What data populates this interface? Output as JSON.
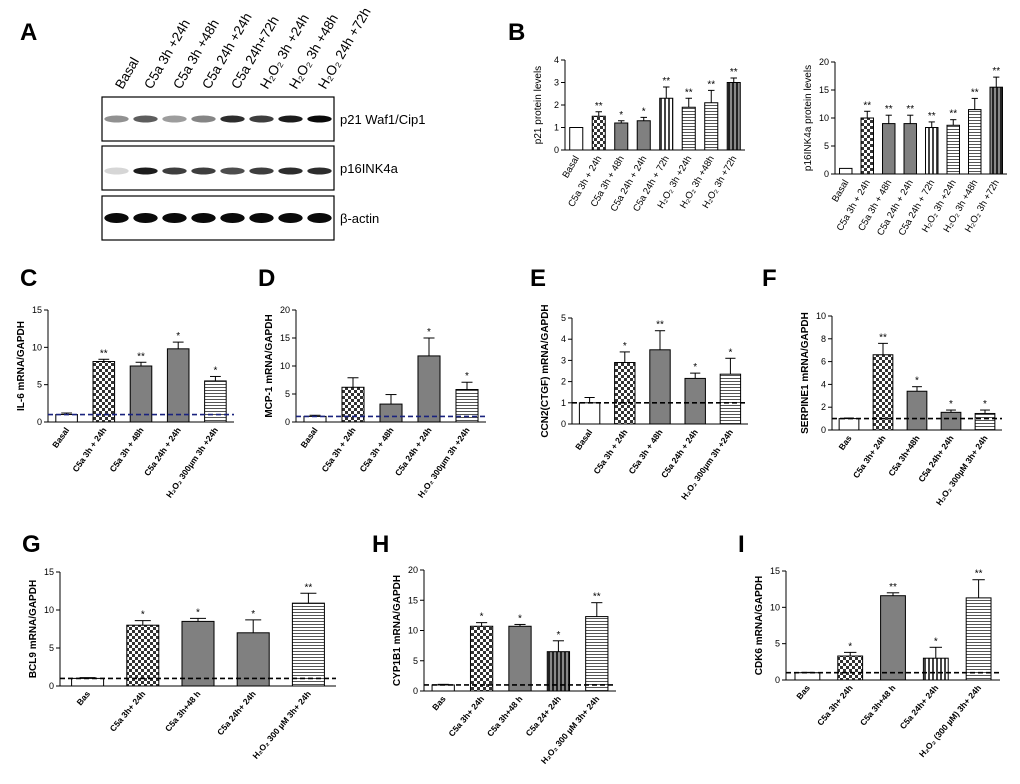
{
  "panels": {
    "A": "A",
    "B": "B",
    "C": "C",
    "D": "D",
    "E": "E",
    "F": "F",
    "G": "G",
    "H": "H",
    "I": "I"
  },
  "blot": {
    "lanes": [
      "Basal",
      "C5a 3h +24h",
      "C5a 3h +48h",
      "C5a 24h +24h",
      "C5a 24h+72h",
      "H₂O₂ 3h +24h",
      "H₂O₂ 3h +48h",
      "H₂O₂ 24h +72h"
    ],
    "rows": [
      {
        "label": "p21 Waf1/Cip1",
        "intensity": [
          0.55,
          0.75,
          0.5,
          0.6,
          0.9,
          0.85,
          0.95,
          1.0
        ]
      },
      {
        "label": "p16INK4a",
        "intensity": [
          0.2,
          0.95,
          0.85,
          0.85,
          0.8,
          0.85,
          0.9,
          0.9
        ]
      },
      {
        "label": "β-actin",
        "intensity": [
          1,
          1,
          1,
          1,
          1,
          1,
          1,
          1
        ]
      }
    ]
  },
  "chart_data": [
    {
      "id": "B1",
      "type": "bar",
      "panel": "B",
      "ylabel": "p21 protein levels",
      "ylim": [
        0,
        4
      ],
      "yticks": [
        0,
        1,
        2,
        3,
        4
      ],
      "categories": [
        "Basal",
        "C5a 3h + 24h",
        "C5a 3h + 48h",
        "C5a 24h + 24h",
        "C5a 24h + 72h",
        "H₂O₂ 3h +24h",
        "H₂O₂ 3h +48h",
        "H₂O₂ 3h +72h"
      ],
      "values": [
        1.0,
        1.5,
        1.2,
        1.3,
        2.3,
        1.9,
        2.1,
        3.0
      ],
      "errors": [
        0,
        0.2,
        0.1,
        0.15,
        0.5,
        0.4,
        0.55,
        0.2
      ],
      "sig": [
        "",
        "**",
        "*",
        "*",
        "**",
        "**",
        "**",
        "**"
      ],
      "patterns": [
        "white",
        "check",
        "gray",
        "gray",
        "vstripe",
        "hstripe",
        "hstripe",
        "dkvstripe"
      ]
    },
    {
      "id": "B2",
      "type": "bar",
      "panel": "B",
      "ylabel": "p16INK4a protein levels",
      "ylim": [
        0,
        20
      ],
      "yticks": [
        0,
        5,
        10,
        15,
        20
      ],
      "categories": [
        "Basal",
        "C5a 3h + 24h",
        "C5a 3h + 48h",
        "C5a 24h + 24h",
        "C5a 24h + 72h",
        "H₂O₂ 3h +24h",
        "H₂O₂ 3h +48h",
        "H₂O₂ 3h +72h"
      ],
      "values": [
        1.0,
        10.0,
        9.0,
        9.0,
        8.3,
        8.7,
        11.5,
        15.5
      ],
      "errors": [
        0,
        1.2,
        1.5,
        1.5,
        1.0,
        1.0,
        2.0,
        1.8
      ],
      "sig": [
        "",
        "**",
        "**",
        "**",
        "**",
        "**",
        "**",
        "**"
      ],
      "patterns": [
        "white",
        "check",
        "gray",
        "gray",
        "vstripe",
        "hstripe",
        "hstripe",
        "dkvstripe"
      ]
    },
    {
      "id": "C",
      "type": "bar",
      "panel": "C",
      "ylabel": "IL-6 mRNA/GAPDH",
      "ylim": [
        0,
        15
      ],
      "yticks": [
        0,
        5,
        10,
        15
      ],
      "categories": [
        "Basal",
        "C5a 3h + 24h",
        "C5a 3h + 48h",
        "C5a 24h + 24h",
        "H₂O₂ 300µm 3h +24h"
      ],
      "values": [
        1.0,
        8.1,
        7.5,
        9.8,
        5.5
      ],
      "errors": [
        0.2,
        0.3,
        0.5,
        0.9,
        0.6
      ],
      "sig": [
        "",
        "**",
        "**",
        "*",
        "*"
      ],
      "baseline": 1,
      "baseline_style": "dash-navy",
      "patterns": [
        "white",
        "check",
        "gray",
        "gray",
        "hstripe"
      ]
    },
    {
      "id": "D",
      "type": "bar",
      "panel": "D",
      "ylabel": "MCP-1 mRNA/GAPDH",
      "ylim": [
        0,
        20
      ],
      "yticks": [
        0,
        5,
        10,
        15,
        20
      ],
      "categories": [
        "Basal",
        "C5a 3h + 24h",
        "C5a 3h + 48h",
        "C5a 24h + 24h",
        "H₂O₂ 300µm 3h +24h"
      ],
      "values": [
        1.0,
        6.2,
        3.2,
        11.8,
        5.8
      ],
      "errors": [
        0.2,
        1.7,
        1.7,
        3.2,
        1.3
      ],
      "sig": [
        "",
        "",
        "",
        "*",
        "*"
      ],
      "baseline": 1,
      "baseline_style": "dash-navy",
      "patterns": [
        "white",
        "check",
        "gray",
        "gray",
        "hstripe"
      ]
    },
    {
      "id": "E",
      "type": "bar",
      "panel": "E",
      "ylabel": "CCN2(CTGF) mRNA/GAPDH",
      "ylim": [
        0,
        5
      ],
      "yticks": [
        0,
        1,
        2,
        3,
        4,
        5
      ],
      "categories": [
        "Basal",
        "C5a 3h + 24h",
        "C5a 3h + 48h",
        "C5a 24h + 24h",
        "H₂O₂ 300µm 3h +24h"
      ],
      "values": [
        1.0,
        2.9,
        3.5,
        2.15,
        2.35
      ],
      "errors": [
        0.25,
        0.5,
        0.9,
        0.25,
        0.75
      ],
      "sig": [
        "",
        "*",
        "**",
        "*",
        "*"
      ],
      "baseline": 1,
      "baseline_style": "dash-black",
      "patterns": [
        "white",
        "check",
        "gray",
        "gray",
        "hstripe"
      ]
    },
    {
      "id": "F",
      "type": "bar",
      "panel": "F",
      "ylabel": "SERPINE1 mRNA/GAPDH",
      "ylim": [
        0,
        10
      ],
      "yticks": [
        0,
        2,
        4,
        6,
        8,
        10
      ],
      "categories": [
        "Bas",
        "C5a 3h+ 24h",
        "C5a 3h+48h",
        "C5a 24h+ 24h",
        "H₂O₂ 300µM 3h+ 24h"
      ],
      "values": [
        1.0,
        6.6,
        3.4,
        1.55,
        1.45
      ],
      "errors": [
        0.05,
        1.0,
        0.4,
        0.2,
        0.3
      ],
      "sig": [
        "",
        "**",
        "*",
        "*",
        "*"
      ],
      "baseline": 1,
      "baseline_style": "dash-black",
      "patterns": [
        "white",
        "check",
        "gray",
        "gray",
        "hstripe"
      ]
    },
    {
      "id": "G",
      "type": "bar",
      "panel": "G",
      "ylabel": "BCL9 mRNA/GAPDH",
      "ylim": [
        0,
        15
      ],
      "yticks": [
        0,
        5,
        10,
        15
      ],
      "categories": [
        "Bas",
        "C5a 3h+ 24h",
        "C5a 3h+48 h",
        "C5a 24h+ 24h",
        "H₂O₂ 300 µM 3h+ 24h"
      ],
      "values": [
        1.0,
        8.0,
        8.5,
        7.0,
        10.9
      ],
      "errors": [
        0.1,
        0.6,
        0.4,
        1.7,
        1.3
      ],
      "sig": [
        "",
        "*",
        "*",
        "*",
        "**"
      ],
      "baseline": 1,
      "baseline_style": "dash-black",
      "patterns": [
        "white",
        "check",
        "gray",
        "gray",
        "hstripe"
      ]
    },
    {
      "id": "H",
      "type": "bar",
      "panel": "H",
      "ylabel": "CYP1B1 mRNA/GAPDH",
      "ylim": [
        0,
        20
      ],
      "yticks": [
        0,
        5,
        10,
        15,
        20
      ],
      "categories": [
        "Bas",
        "C5a 3h+ 24h",
        "C5a 3h+48 h",
        "C5a 24+ 24h",
        "H₂O₂ 300 µM 3h+ 24h"
      ],
      "values": [
        1.0,
        10.7,
        10.7,
        6.5,
        12.3
      ],
      "errors": [
        0.1,
        0.6,
        0.3,
        1.8,
        2.3
      ],
      "sig": [
        "",
        "*",
        "*",
        "*",
        "**"
      ],
      "baseline": 1,
      "baseline_style": "dash-black",
      "patterns": [
        "white",
        "check",
        "gray",
        "dkvstripe",
        "hstripe"
      ]
    },
    {
      "id": "I",
      "type": "bar",
      "panel": "I",
      "ylabel": "CDK6 mRNA/GAPDH",
      "ylim": [
        0,
        15
      ],
      "yticks": [
        0,
        5,
        10,
        15
      ],
      "categories": [
        "Bas",
        "C5a 3h+ 24h",
        "C5a 3h+48 h",
        "C5a 24h+ 24h",
        "H₂O₂ (300 µM) 3h+ 24h"
      ],
      "values": [
        1.0,
        3.3,
        11.6,
        3.0,
        11.3
      ],
      "errors": [
        0.05,
        0.5,
        0.4,
        1.5,
        2.5
      ],
      "sig": [
        "",
        "*",
        "**",
        "*",
        "**"
      ],
      "baseline": 1,
      "baseline_style": "dash-black",
      "patterns": [
        "white",
        "check",
        "gray",
        "vstripe",
        "hstripe"
      ]
    }
  ]
}
